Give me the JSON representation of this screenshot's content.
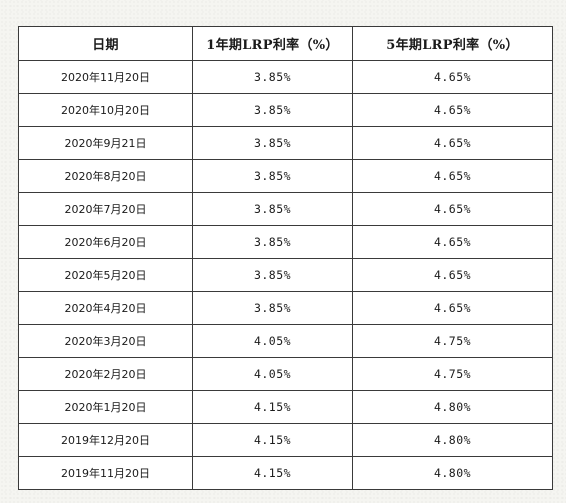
{
  "table": {
    "headers": {
      "date": "日期",
      "lpr_1y": "1年期LRP利率（%）",
      "lpr_5y": "5年期LRP利率（%）"
    },
    "rows": [
      {
        "date": "2020年11月20日",
        "lpr_1y": "3.85%",
        "lpr_5y": "4.65%"
      },
      {
        "date": "2020年10月20日",
        "lpr_1y": "3.85%",
        "lpr_5y": "4.65%"
      },
      {
        "date": "2020年9月21日",
        "lpr_1y": "3.85%",
        "lpr_5y": "4.65%"
      },
      {
        "date": "2020年8月20日",
        "lpr_1y": "3.85%",
        "lpr_5y": "4.65%"
      },
      {
        "date": "2020年7月20日",
        "lpr_1y": "3.85%",
        "lpr_5y": "4.65%"
      },
      {
        "date": "2020年6月20日",
        "lpr_1y": "3.85%",
        "lpr_5y": "4.65%"
      },
      {
        "date": "2020年5月20日",
        "lpr_1y": "3.85%",
        "lpr_5y": "4.65%"
      },
      {
        "date": "2020年4月20日",
        "lpr_1y": "3.85%",
        "lpr_5y": "4.65%"
      },
      {
        "date": "2020年3月20日",
        "lpr_1y": "4.05%",
        "lpr_5y": "4.75%"
      },
      {
        "date": "2020年2月20日",
        "lpr_1y": "4.05%",
        "lpr_5y": "4.75%"
      },
      {
        "date": "2020年1月20日",
        "lpr_1y": "4.15%",
        "lpr_5y": "4.80%"
      },
      {
        "date": "2019年12月20日",
        "lpr_1y": "4.15%",
        "lpr_5y": "4.80%"
      },
      {
        "date": "2019年11月20日",
        "lpr_1y": "4.15%",
        "lpr_5y": "4.80%"
      }
    ]
  }
}
